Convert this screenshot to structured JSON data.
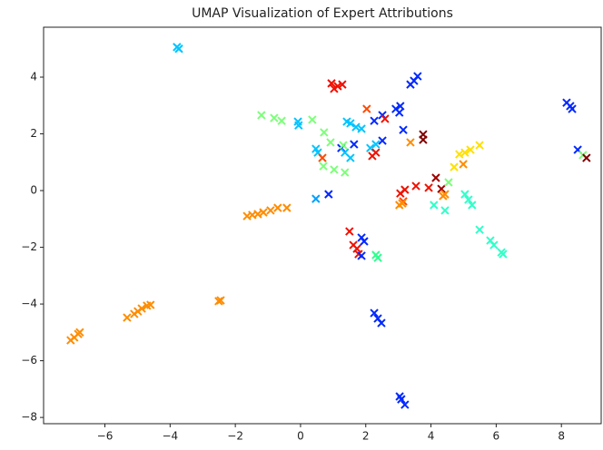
{
  "chart_data": {
    "type": "scatter",
    "title": "UMAP Visualization of Expert Attributions",
    "x": [
      -3.79,
      -3.73,
      -7.05,
      -6.94,
      -6.82,
      -6.77,
      -5.32,
      -5.1,
      -4.99,
      -4.87,
      -4.71,
      -4.6,
      -2.51,
      -2.45,
      -1.64,
      -1.48,
      -1.31,
      -1.14,
      -0.92,
      -0.7,
      -0.42,
      -1.2,
      -0.81,
      -0.58,
      -0.08,
      -0.06,
      0.36,
      0.72,
      0.92,
      0.95,
      1.14,
      1.28,
      1.03,
      1.42,
      1.53,
      1.7,
      1.87,
      2.03,
      2.26,
      2.51,
      2.59,
      2.92,
      3.06,
      3.03,
      3.15,
      3.37,
      3.48,
      3.59,
      3.37,
      3.76,
      3.76,
      0.47,
      0.53,
      0.67,
      0.7,
      1.03,
      1.36,
      1.25,
      1.36,
      1.53,
      1.31,
      1.64,
      2.14,
      2.31,
      2.2,
      2.31,
      2.51,
      0.47,
      0.86,
      3.2,
      3.06,
      3.15,
      3.12,
      3.03,
      3.54,
      3.93,
      4.15,
      4.32,
      4.43,
      4.37,
      4.09,
      4.43,
      4.54,
      4.71,
      4.87,
      5.04,
      5.21,
      5.49,
      4.99,
      5.04,
      5.15,
      5.26,
      5.49,
      5.82,
      5.93,
      6.16,
      6.21,
      1.5,
      1.62,
      1.73,
      1.78,
      1.87,
      1.95,
      1.87,
      2.31,
      2.37,
      2.26,
      2.37,
      2.48,
      3.04,
      3.09,
      3.2,
      8.16,
      8.27,
      8.33,
      8.5,
      8.66,
      8.77
    ],
    "values": [
      5.06,
      5.0,
      -5.28,
      -5.18,
      -5.06,
      -5.0,
      -4.48,
      -4.35,
      -4.26,
      -4.16,
      -4.06,
      -4.03,
      -3.9,
      -3.87,
      -0.9,
      -0.86,
      -0.83,
      -0.77,
      -0.7,
      -0.61,
      -0.61,
      2.66,
      2.56,
      2.46,
      2.43,
      2.3,
      2.5,
      2.05,
      1.7,
      3.78,
      3.68,
      3.74,
      3.59,
      2.43,
      2.37,
      2.24,
      2.18,
      2.88,
      2.46,
      2.66,
      2.53,
      2.88,
      2.98,
      2.75,
      2.14,
      3.74,
      3.87,
      4.03,
      1.7,
      1.98,
      1.79,
      1.47,
      1.34,
      1.15,
      0.86,
      0.74,
      0.64,
      1.5,
      1.34,
      1.15,
      1.6,
      1.63,
      1.5,
      1.63,
      1.22,
      1.34,
      1.76,
      -0.29,
      -0.13,
      0.03,
      -0.1,
      -0.38,
      -0.45,
      -0.51,
      0.16,
      0.1,
      0.45,
      0.06,
      -0.13,
      -0.19,
      -0.51,
      -0.7,
      0.29,
      0.83,
      1.28,
      1.34,
      1.44,
      1.6,
      0.93,
      -0.13,
      -0.32,
      -0.51,
      -1.38,
      -1.76,
      -1.92,
      -2.18,
      -2.24,
      -1.44,
      -1.92,
      -2.05,
      -2.24,
      -1.66,
      -1.79,
      -2.3,
      -2.27,
      -2.37,
      -4.32,
      -4.51,
      -4.67,
      -7.26,
      -7.36,
      -7.55,
      3.1,
      2.98,
      2.88,
      1.44,
      1.25,
      1.15
    ],
    "colors": [
      "#00c4ff",
      "#00c4ff",
      "#ff8c00",
      "#ff8c00",
      "#ff8c00",
      "#ff8c00",
      "#ff8c00",
      "#ff8c00",
      "#ff8c00",
      "#ff8c00",
      "#ff8c00",
      "#ff8c00",
      "#ff8c00",
      "#ff8c00",
      "#ff8c00",
      "#ff8c00",
      "#ff8c00",
      "#ff8c00",
      "#ff8c00",
      "#ff8c00",
      "#ff8c00",
      "#7cff79",
      "#7cff79",
      "#7cff79",
      "#00c4ff",
      "#00c4ff",
      "#7cff79",
      "#7cff79",
      "#7cff79",
      "#f01000",
      "#f01000",
      "#f01000",
      "#f01000",
      "#00c4ff",
      "#00c4ff",
      "#00c4ff",
      "#00c4ff",
      "#ff4800",
      "#0028ff",
      "#0028ff",
      "#f01000",
      "#0028ff",
      "#0028ff",
      "#0028ff",
      "#0028ff",
      "#0028ff",
      "#0028ff",
      "#0028ff",
      "#ff8c00",
      "#800000",
      "#800000",
      "#00c4ff",
      "#00c4ff",
      "#ff4800",
      "#7cff79",
      "#7cff79",
      "#7cff79",
      "#0028ff",
      "#00c4ff",
      "#00c4ff",
      "#7cff79",
      "#0028ff",
      "#00c4ff",
      "#00c4ff",
      "#f01000",
      "#f01000",
      "#0028ff",
      "#00a0ff",
      "#0028ff",
      "#f01000",
      "#f01000",
      "#ff4800",
      "#ff8c00",
      "#ff8c00",
      "#f01000",
      "#f01000",
      "#a00000",
      "#a00000",
      "#ff8c00",
      "#ff8c00",
      "#30ffc8",
      "#30ffc8",
      "#7cff79",
      "#ffe000",
      "#ffe000",
      "#ffe000",
      "#ffe000",
      "#ffe000",
      "#ff8c00",
      "#30ffc8",
      "#30ffc8",
      "#30ffc8",
      "#30ffc8",
      "#30ffc8",
      "#30ffc8",
      "#30ffc8",
      "#30ffc8",
      "#f01000",
      "#f01000",
      "#f01000",
      "#f01000",
      "#0028ff",
      "#0028ff",
      "#0028ff",
      "#30ff90",
      "#30ff90",
      "#0028ff",
      "#0028ff",
      "#0028ff",
      "#0028ff",
      "#0028ff",
      "#0028ff",
      "#0028ff",
      "#0028ff",
      "#0028ff",
      "#0028ff",
      "#7cff79",
      "#800000"
    ],
    "xlim": [
      -7.88,
      9.22
    ],
    "ylim": [
      -8.22,
      5.76
    ],
    "xticks": [
      {
        "value": -6,
        "label": "−6"
      },
      {
        "value": -4,
        "label": "−4"
      },
      {
        "value": -2,
        "label": "−2"
      },
      0,
      2,
      4,
      6,
      8
    ],
    "yticks": [
      {
        "value": -8,
        "label": "−8"
      },
      {
        "value": -6,
        "label": "−6"
      },
      {
        "value": -4,
        "label": "−4"
      },
      {
        "value": -2,
        "label": "−2"
      },
      0,
      2,
      4
    ],
    "grid": false
  }
}
